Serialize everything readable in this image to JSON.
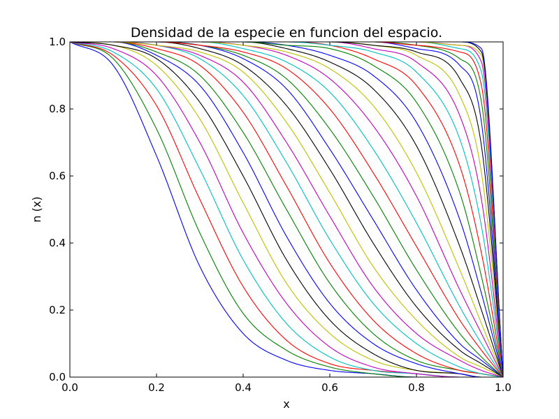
{
  "chart_data": {
    "type": "line",
    "title": "Densidad de la especie en funcion del espacio.",
    "xlabel": "x",
    "ylabel": "n (x)",
    "xlim": [
      0.0,
      1.0
    ],
    "ylim": [
      0.0,
      1.0
    ],
    "grid": false,
    "legend": "none",
    "x_ticks": [
      0.0,
      0.2,
      0.4,
      0.6,
      0.8,
      1.0
    ],
    "y_ticks": [
      0.0,
      0.2,
      0.4,
      0.6,
      0.8,
      1.0
    ],
    "x_tick_labels": [
      "0.0",
      "0.2",
      "0.4",
      "0.6",
      "0.8",
      "1.0"
    ],
    "y_tick_labels": [
      "0.0",
      "0.2",
      "0.4",
      "0.6",
      "0.8",
      "1.0"
    ],
    "color_cycle": [
      "#0000ff",
      "#008000",
      "#ff0000",
      "#00bfbf",
      "#bf00bf",
      "#bfbf00",
      "#000000"
    ],
    "x": [
      0.0,
      0.1,
      0.2,
      0.3,
      0.4,
      0.5,
      0.6,
      0.7,
      0.8,
      0.9,
      0.95,
      1.0
    ],
    "series": [
      {
        "values": [
          1.0,
          0.93,
          0.66,
          0.33,
          0.13,
          0.05,
          0.02,
          0.01,
          0.0,
          0.0,
          0.0,
          0.0
        ]
      },
      {
        "values": [
          1.0,
          0.95,
          0.74,
          0.43,
          0.19,
          0.08,
          0.03,
          0.01,
          0.0,
          0.0,
          0.0,
          0.0
        ]
      },
      {
        "values": [
          1.0,
          0.96,
          0.81,
          0.53,
          0.27,
          0.11,
          0.04,
          0.02,
          0.01,
          0.0,
          0.0,
          0.0
        ]
      },
      {
        "values": [
          1.0,
          0.97,
          0.86,
          0.62,
          0.35,
          0.16,
          0.06,
          0.02,
          0.01,
          0.0,
          0.0,
          0.0
        ]
      },
      {
        "values": [
          1.0,
          0.98,
          0.9,
          0.7,
          0.43,
          0.22,
          0.09,
          0.03,
          0.01,
          0.0,
          0.0,
          0.0
        ]
      },
      {
        "values": [
          1.0,
          0.99,
          0.93,
          0.77,
          0.52,
          0.28,
          0.13,
          0.05,
          0.02,
          0.01,
          0.0,
          0.0
        ]
      },
      {
        "values": [
          1.0,
          0.99,
          0.95,
          0.82,
          0.6,
          0.35,
          0.17,
          0.07,
          0.02,
          0.01,
          0.0,
          0.0
        ]
      },
      {
        "values": [
          1.0,
          1.0,
          0.96,
          0.87,
          0.67,
          0.42,
          0.22,
          0.1,
          0.04,
          0.01,
          0.0,
          0.0
        ]
      },
      {
        "values": [
          1.0,
          1.0,
          0.97,
          0.9,
          0.73,
          0.5,
          0.28,
          0.13,
          0.05,
          0.02,
          0.01,
          0.0
        ]
      },
      {
        "values": [
          1.0,
          1.0,
          0.98,
          0.93,
          0.79,
          0.57,
          0.34,
          0.17,
          0.07,
          0.02,
          0.01,
          0.0
        ]
      },
      {
        "values": [
          1.0,
          1.0,
          0.99,
          0.95,
          0.84,
          0.64,
          0.41,
          0.22,
          0.1,
          0.03,
          0.01,
          0.0
        ]
      },
      {
        "values": [
          1.0,
          1.0,
          0.99,
          0.96,
          0.88,
          0.7,
          0.48,
          0.27,
          0.13,
          0.05,
          0.02,
          0.0
        ]
      },
      {
        "values": [
          1.0,
          1.0,
          0.99,
          0.97,
          0.91,
          0.76,
          0.55,
          0.33,
          0.17,
          0.06,
          0.03,
          0.0
        ]
      },
      {
        "values": [
          1.0,
          1.0,
          1.0,
          0.98,
          0.93,
          0.81,
          0.62,
          0.4,
          0.21,
          0.08,
          0.04,
          0.0
        ]
      },
      {
        "values": [
          1.0,
          1.0,
          1.0,
          0.99,
          0.95,
          0.86,
          0.68,
          0.47,
          0.26,
          0.1,
          0.05,
          0.0
        ]
      },
      {
        "values": [
          1.0,
          1.0,
          1.0,
          0.99,
          0.96,
          0.89,
          0.74,
          0.54,
          0.32,
          0.13,
          0.06,
          0.0
        ]
      },
      {
        "values": [
          1.0,
          1.0,
          1.0,
          0.99,
          0.97,
          0.92,
          0.8,
          0.61,
          0.39,
          0.17,
          0.08,
          0.0
        ]
      },
      {
        "values": [
          1.0,
          1.0,
          1.0,
          1.0,
          0.98,
          0.94,
          0.85,
          0.68,
          0.46,
          0.21,
          0.1,
          0.0
        ]
      },
      {
        "values": [
          1.0,
          1.0,
          1.0,
          1.0,
          0.99,
          0.96,
          0.89,
          0.75,
          0.54,
          0.26,
          0.13,
          0.0
        ]
      },
      {
        "values": [
          1.0,
          1.0,
          1.0,
          1.0,
          0.99,
          0.97,
          0.92,
          0.81,
          0.61,
          0.32,
          0.16,
          0.0
        ]
      },
      {
        "values": [
          1.0,
          1.0,
          1.0,
          1.0,
          1.0,
          0.98,
          0.94,
          0.86,
          0.69,
          0.39,
          0.2,
          0.0
        ]
      },
      {
        "values": [
          1.0,
          1.0,
          1.0,
          1.0,
          1.0,
          0.99,
          0.96,
          0.9,
          0.76,
          0.47,
          0.25,
          0.0
        ]
      },
      {
        "values": [
          1.0,
          1.0,
          1.0,
          1.0,
          1.0,
          0.99,
          0.98,
          0.93,
          0.82,
          0.55,
          0.3,
          0.0
        ]
      },
      {
        "values": [
          1.0,
          1.0,
          1.0,
          1.0,
          1.0,
          1.0,
          0.99,
          0.95,
          0.87,
          0.63,
          0.37,
          0.0
        ]
      },
      {
        "values": [
          1.0,
          1.0,
          1.0,
          1.0,
          1.0,
          1.0,
          0.99,
          0.97,
          0.91,
          0.71,
          0.45,
          0.0
        ]
      },
      {
        "values": [
          1.0,
          1.0,
          1.0,
          1.0,
          1.0,
          1.0,
          1.0,
          0.98,
          0.94,
          0.78,
          0.53,
          0.0
        ]
      },
      {
        "values": [
          1.0,
          1.0,
          1.0,
          1.0,
          1.0,
          1.0,
          1.0,
          0.99,
          0.96,
          0.84,
          0.61,
          0.0
        ]
      },
      {
        "values": [
          1.0,
          1.0,
          1.0,
          1.0,
          1.0,
          1.0,
          1.0,
          0.99,
          0.97,
          0.89,
          0.69,
          0.0
        ]
      },
      {
        "values": [
          1.0,
          1.0,
          1.0,
          1.0,
          1.0,
          1.0,
          1.0,
          1.0,
          0.98,
          0.93,
          0.76,
          0.0
        ]
      },
      {
        "values": [
          1.0,
          1.0,
          1.0,
          1.0,
          1.0,
          1.0,
          1.0,
          1.0,
          0.99,
          0.95,
          0.82,
          0.0
        ]
      },
      {
        "values": [
          1.0,
          1.0,
          1.0,
          1.0,
          1.0,
          1.0,
          1.0,
          1.0,
          0.99,
          0.97,
          0.87,
          0.0
        ]
      },
      {
        "values": [
          1.0,
          1.0,
          1.0,
          1.0,
          1.0,
          1.0,
          1.0,
          1.0,
          1.0,
          0.98,
          0.91,
          0.0
        ]
      },
      {
        "values": [
          1.0,
          1.0,
          1.0,
          1.0,
          1.0,
          1.0,
          1.0,
          1.0,
          1.0,
          0.99,
          0.94,
          0.0
        ]
      },
      {
        "values": [
          1.0,
          1.0,
          1.0,
          1.0,
          1.0,
          1.0,
          1.0,
          1.0,
          1.0,
          0.99,
          0.96,
          0.0
        ]
      },
      {
        "values": [
          1.0,
          1.0,
          1.0,
          1.0,
          1.0,
          1.0,
          1.0,
          1.0,
          1.0,
          1.0,
          0.97,
          0.0
        ]
      },
      {
        "values": [
          1.0,
          1.0,
          1.0,
          1.0,
          1.0,
          1.0,
          1.0,
          1.0,
          1.0,
          1.0,
          0.98,
          0.0
        ]
      }
    ]
  }
}
